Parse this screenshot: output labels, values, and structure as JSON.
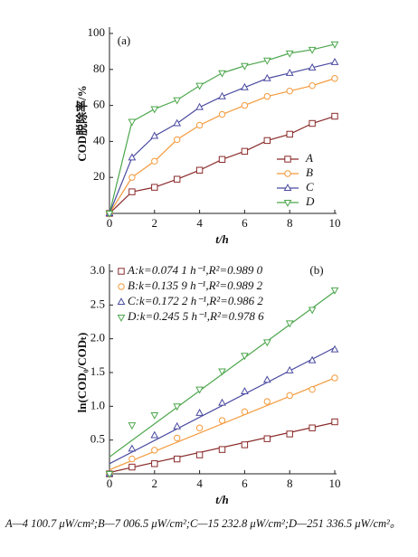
{
  "chart_data": [
    {
      "type": "line",
      "label": "(a)",
      "xlabel": "t/h",
      "ylabel": "COD脱除率/%",
      "x": [
        0,
        1,
        2,
        3,
        4,
        5,
        6,
        7,
        8,
        9,
        10
      ],
      "xlim": [
        0,
        10
      ],
      "xticks": [
        0,
        2,
        4,
        6,
        8,
        10
      ],
      "ylim": [
        0,
        100
      ],
      "yticks": [
        20,
        40,
        60,
        80,
        100
      ],
      "series": [
        {
          "name": "A",
          "color": "#8b2a2a",
          "marker": "square",
          "values": [
            0,
            12,
            14.5,
            19,
            24,
            30,
            34.5,
            40.5,
            44,
            50,
            54
          ]
        },
        {
          "name": "B",
          "color": "#f39a3c",
          "marker": "circle",
          "values": [
            0,
            20,
            29,
            41,
            49,
            55,
            60,
            65,
            68,
            71,
            75
          ]
        },
        {
          "name": "C",
          "color": "#4a4aa0",
          "marker": "triangle",
          "values": [
            0,
            31,
            43,
            50,
            59,
            65,
            70,
            75,
            78,
            81,
            84
          ]
        },
        {
          "name": "D",
          "color": "#4ca64c",
          "marker": "triangle-down",
          "values": [
            0,
            51,
            58,
            63,
            71,
            78,
            82,
            85,
            89,
            91,
            94
          ]
        }
      ]
    },
    {
      "type": "scatter",
      "label": "(b)",
      "xlabel": "t/h",
      "ylabel": "ln(COD₀/CODₜ)",
      "x": [
        0,
        1,
        2,
        3,
        4,
        5,
        6,
        7,
        8,
        9,
        10
      ],
      "fit_x": [
        0,
        10
      ],
      "xlim": [
        0,
        10
      ],
      "xticks": [
        0,
        2,
        4,
        6,
        8,
        10
      ],
      "ylim": [
        0,
        3.0
      ],
      "yticks": [
        0.5,
        {
          "value": 1.0,
          "label": "1.0"
        },
        1.5,
        {
          "value": 2.0,
          "label": "2.0"
        },
        2.5,
        {
          "value": 3.0,
          "label": "3.0"
        }
      ],
      "series": [
        {
          "name": "A:k=0.074 1 h⁻¹,R²=0.989 0",
          "color": "#8b2a2a",
          "marker": "square",
          "values": [
            0,
            0.1,
            0.15,
            0.22,
            0.28,
            0.36,
            0.43,
            0.52,
            0.59,
            0.68,
            0.77
          ],
          "fit": [
            0.02,
            0.76
          ]
        },
        {
          "name": "B:k=0.135 9 h⁻¹,R²=0.989 2",
          "color": "#f39a3c",
          "marker": "circle",
          "values": [
            0,
            0.22,
            0.35,
            0.53,
            0.68,
            0.79,
            0.92,
            1.07,
            1.16,
            1.25,
            1.42
          ],
          "fit": [
            0.06,
            1.42
          ]
        },
        {
          "name": "C:k=0.172 2 h⁻¹,R²=0.986 2",
          "color": "#4a4aa0",
          "marker": "triangle",
          "values": [
            0,
            0.37,
            0.57,
            0.7,
            0.9,
            1.05,
            1.22,
            1.39,
            1.53,
            1.68,
            1.84
          ],
          "fit": [
            0.15,
            1.87
          ]
        },
        {
          "name": "D:k=0.245 5 h⁻¹,R²=0.978 6",
          "color": "#4ca64c",
          "marker": "triangle-down",
          "values": [
            0,
            0.72,
            0.87,
            1.0,
            1.25,
            1.52,
            1.75,
            1.95,
            2.23,
            2.43,
            2.72
          ],
          "fit": [
            0.25,
            2.7
          ]
        }
      ]
    }
  ],
  "caption": "A—4 100.7 μW/cm²;B—7 006.5 μW/cm²;C—15 232.8 μW/cm²;D—251 336.5 μW/cm²。"
}
